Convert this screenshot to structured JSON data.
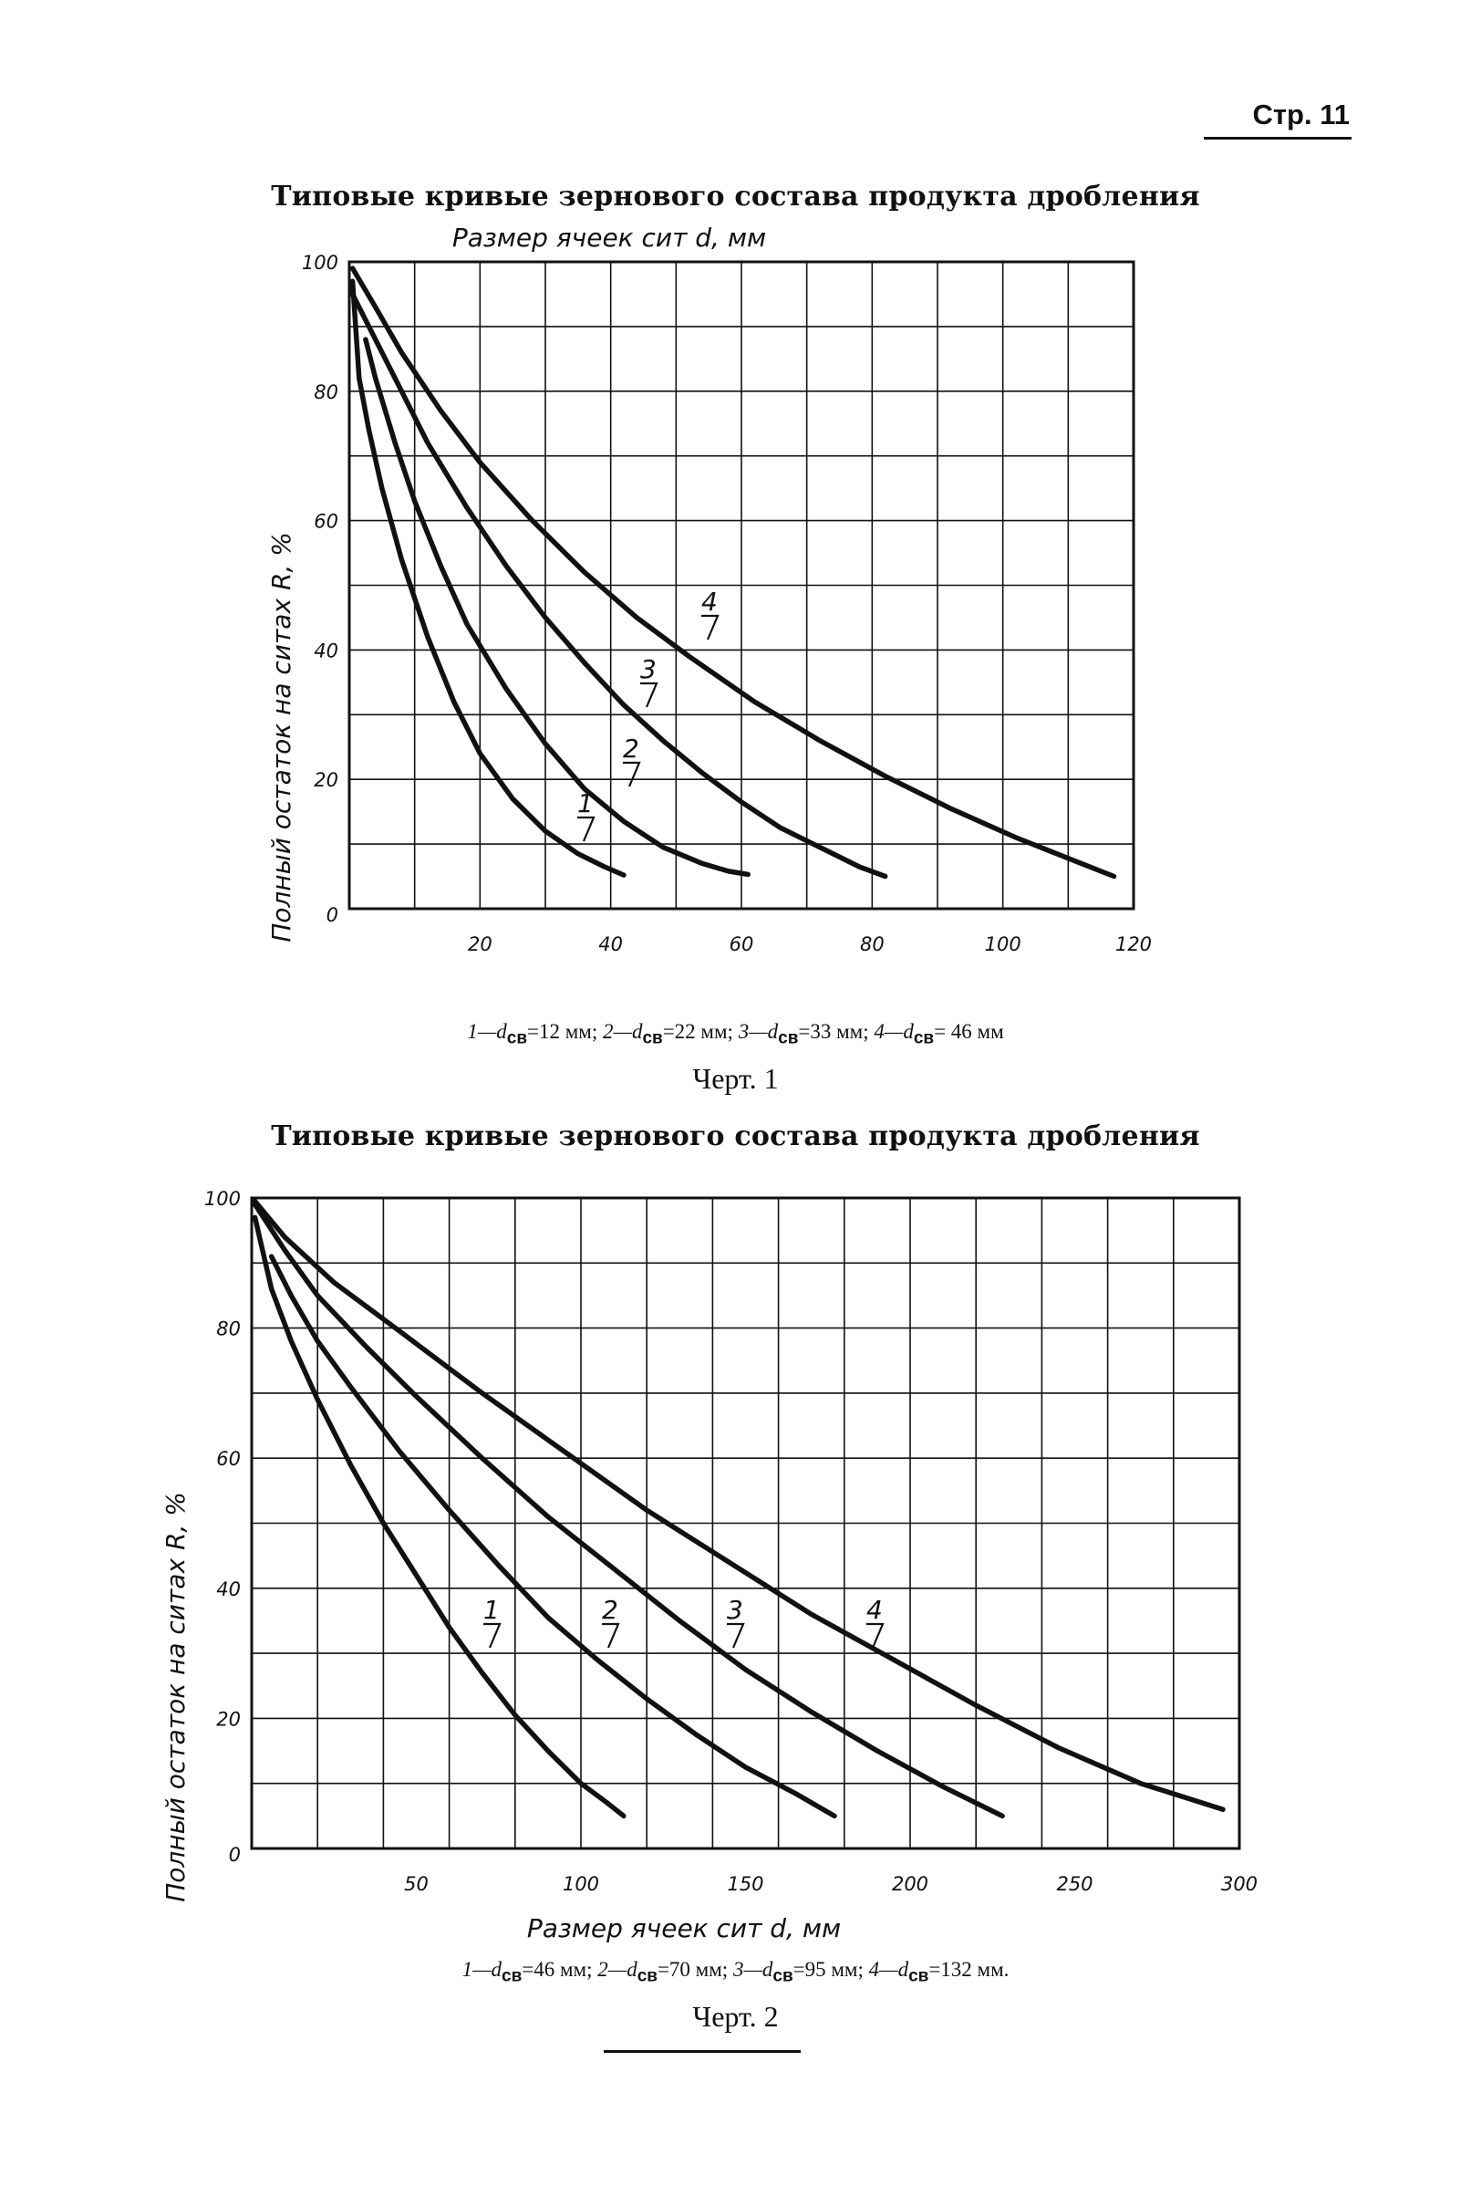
{
  "page": {
    "number": "Стр. 11"
  },
  "colors": {
    "ink": "#111111",
    "paper": "#ffffff"
  },
  "footer_rule": true,
  "chart_data": [
    {
      "type": "line",
      "title": "Типовые кривые зернового состава продукта дробления",
      "xlabel": "Размер ячеек сит d, мм",
      "ylabel": "Полный остаток на ситах R, %",
      "xlim": [
        0,
        120
      ],
      "ylim": [
        0,
        100
      ],
      "xticks": [
        20,
        40,
        60,
        80,
        100,
        120
      ],
      "yticks": [
        0,
        20,
        40,
        60,
        80,
        100
      ],
      "grid": {
        "x_step": 10,
        "y_step": 10
      },
      "series": [
        {
          "name": "1",
          "x": [
            0.5,
            1.5,
            3,
            5,
            8,
            12,
            16,
            20,
            25,
            30,
            35,
            39,
            42
          ],
          "y": [
            97,
            82,
            74,
            65,
            54,
            42,
            32,
            24,
            17,
            12,
            8.5,
            6.5,
            5.2
          ]
        },
        {
          "name": "2",
          "x": [
            2.5,
            4,
            7,
            10,
            14,
            18,
            24,
            30,
            36,
            42,
            48,
            54,
            58,
            61
          ],
          "y": [
            88,
            82,
            72,
            63,
            53,
            44,
            34,
            25.5,
            18.5,
            13.5,
            9.5,
            7,
            5.8,
            5.3
          ]
        },
        {
          "name": "3",
          "x": [
            0.5,
            4,
            7,
            12,
            18,
            24,
            30,
            36,
            42,
            48,
            54,
            60,
            66,
            72,
            78,
            82
          ],
          "y": [
            95,
            88,
            82,
            72,
            62,
            53,
            45,
            38,
            31.5,
            26,
            21,
            16.5,
            12.5,
            9.5,
            6.5,
            5
          ]
        },
        {
          "name": "4",
          "x": [
            0.5,
            4,
            8,
            14,
            20,
            28,
            36,
            44,
            52,
            62,
            72,
            82,
            92,
            102,
            112,
            117
          ],
          "y": [
            99,
            93,
            86,
            77,
            69,
            60,
            52,
            45,
            39,
            32,
            26,
            20.5,
            15.5,
            11,
            7,
            5
          ]
        }
      ],
      "curve_labels": [
        "1",
        "2",
        "3",
        "4"
      ],
      "legend": [
        {
          "code": "1—d",
          "sub": "св",
          "value": "=12 мм;"
        },
        {
          "code": "2—d",
          "sub": "св",
          "value": "=22 мм;"
        },
        {
          "code": "3—d",
          "sub": "св",
          "value": "=33 мм;"
        },
        {
          "code": "4—d",
          "sub": "св",
          "value": "= 46 мм"
        }
      ],
      "caption": "Черт. 1"
    },
    {
      "type": "line",
      "title": "Типовые кривые зернового состава продукта дробления",
      "xlabel": "Размер ячеек сит d, мм",
      "ylabel": "Полный остаток на ситах R, %",
      "xlim": [
        0,
        300
      ],
      "ylim": [
        0,
        100
      ],
      "xticks": [
        50,
        100,
        150,
        200,
        250,
        300
      ],
      "yticks": [
        0,
        20,
        40,
        60,
        80,
        100
      ],
      "grid": {
        "x_step": 20,
        "y_step": 10
      },
      "series": [
        {
          "name": "1",
          "x": [
            1,
            6,
            12,
            20,
            30,
            40,
            50,
            60,
            70,
            80,
            90,
            100,
            108,
            113
          ],
          "y": [
            97,
            86,
            78,
            69,
            59,
            50,
            42,
            34,
            27,
            20.5,
            15,
            10,
            7,
            5
          ]
        },
        {
          "name": "2",
          "x": [
            6,
            12,
            20,
            30,
            45,
            60,
            75,
            90,
            105,
            120,
            135,
            150,
            165,
            177
          ],
          "y": [
            91,
            85,
            78,
            71,
            61,
            52,
            43.5,
            35.5,
            29,
            23,
            17.5,
            12.5,
            8.5,
            5
          ]
        },
        {
          "name": "3",
          "x": [
            1,
            10,
            20,
            35,
            50,
            70,
            90,
            110,
            130,
            150,
            170,
            190,
            210,
            228
          ],
          "y": [
            99,
            92,
            85,
            77,
            69.5,
            60,
            51,
            43,
            35,
            27.5,
            21,
            15,
            9.5,
            5
          ]
        },
        {
          "name": "4",
          "x": [
            1,
            10,
            25,
            45,
            70,
            95,
            120,
            145,
            170,
            195,
            220,
            245,
            270,
            295
          ],
          "y": [
            99.5,
            94,
            87,
            79.5,
            70,
            61,
            52,
            44,
            36,
            29,
            22,
            15.5,
            10,
            6
          ]
        }
      ],
      "curve_labels": [
        "1",
        "2",
        "3",
        "4"
      ],
      "legend": [
        {
          "code": "1—d",
          "sub": "св",
          "value": "=46 мм;"
        },
        {
          "code": "2—d",
          "sub": "св",
          "value": "=70 мм;"
        },
        {
          "code": "3—d",
          "sub": "св",
          "value": "=95 мм;"
        },
        {
          "code": "4—d",
          "sub": "св",
          "value": "=132 мм."
        }
      ],
      "caption": "Черт. 2"
    }
  ]
}
